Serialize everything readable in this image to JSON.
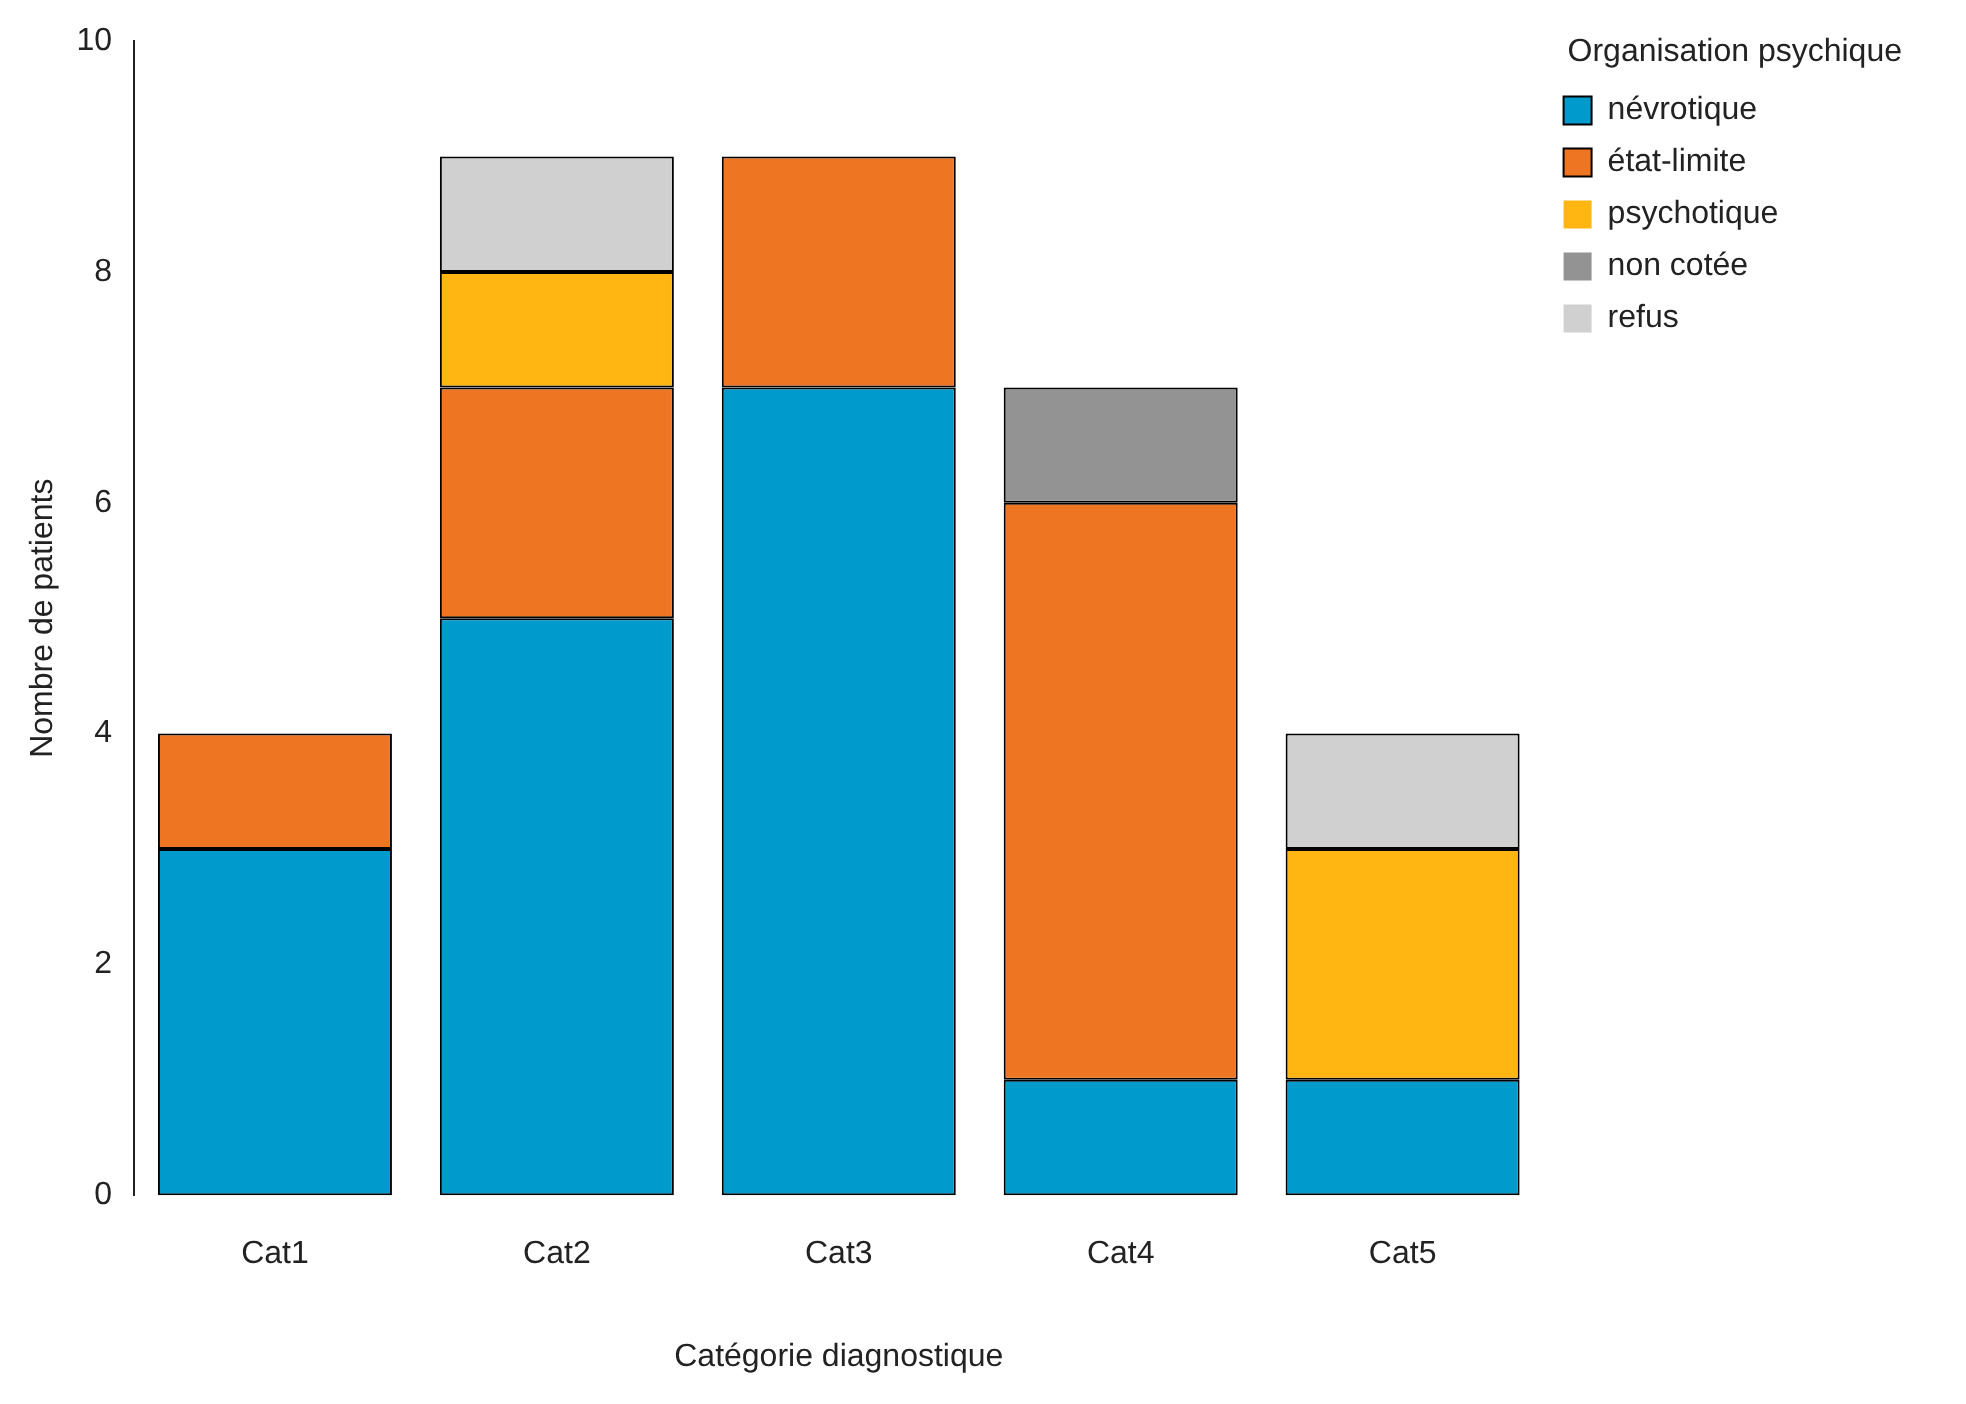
{
  "chart_data": {
    "type": "bar",
    "stacked": true,
    "xlabel": "Catégorie diagnostique",
    "ylabel": "Nombre de patients",
    "legend_title": "Organisation psychique",
    "legend": "top right",
    "grid": false,
    "categories": [
      "Cat1",
      "Cat2",
      "Cat3",
      "Cat4",
      "Cat5"
    ],
    "ylim": [
      0,
      10
    ],
    "yticks": [
      0,
      2,
      4,
      6,
      8,
      10
    ],
    "series": [
      {
        "name": "névrotique",
        "color": "#009acd",
        "values": [
          3,
          5,
          7,
          1,
          1
        ]
      },
      {
        "name": "état-limite",
        "color": "#ee7623",
        "values": [
          1,
          2,
          2,
          5,
          0
        ]
      },
      {
        "name": "psychotique",
        "color": "#ffb612",
        "values": [
          0,
          1,
          0,
          0,
          2
        ]
      },
      {
        "name": "non cotée",
        "color": "#939393",
        "values": [
          0,
          0,
          0,
          1,
          0
        ]
      },
      {
        "name": "refus",
        "color": "#d0d0d0",
        "values": [
          0,
          1,
          0,
          0,
          1
        ]
      }
    ]
  }
}
